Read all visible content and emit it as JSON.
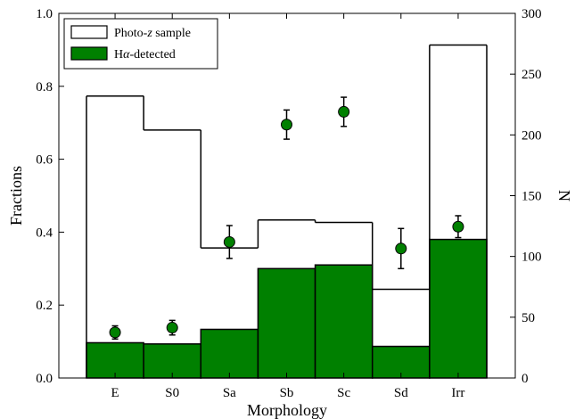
{
  "chart_data": {
    "type": "bar",
    "categories": [
      "E",
      "S0",
      "Sa",
      "Sb",
      "Sc",
      "Sd",
      "Irr"
    ],
    "xlabel": "Morphology",
    "ylabel_left": "Fractions",
    "ylabel_right": "N",
    "ylim_left": [
      0.0,
      1.0
    ],
    "ylim_right": [
      0,
      300
    ],
    "yticks_left": [
      "0.0",
      "0.2",
      "0.4",
      "0.6",
      "0.8",
      "1.0"
    ],
    "yticks_right": [
      "0",
      "50",
      "100",
      "150",
      "200",
      "250",
      "300"
    ],
    "grid": false,
    "legend_position": "top-left",
    "series": [
      {
        "name": "Photo-z sample",
        "legend_prefix": "Photo-",
        "legend_italic": "z",
        "legend_suffix": " sample",
        "style": "step-outline",
        "axis": "right",
        "values": [
          232,
          204,
          107,
          130,
          128,
          73,
          274
        ]
      },
      {
        "name": "Hα-detected",
        "legend_prefix": "H",
        "legend_italic": "α",
        "legend_suffix": "-detected",
        "style": "filled-bar",
        "axis": "right",
        "color": "#008000",
        "values": [
          29,
          28,
          40,
          90,
          93,
          26,
          114
        ]
      },
      {
        "name": "fraction",
        "style": "points-with-errorbars",
        "axis": "left",
        "color": "#008000",
        "values": [
          0.125,
          0.138,
          0.373,
          0.695,
          0.73,
          0.355,
          0.415
        ],
        "errors": [
          0.018,
          0.02,
          0.045,
          0.04,
          0.04,
          0.055,
          0.03
        ]
      }
    ]
  }
}
